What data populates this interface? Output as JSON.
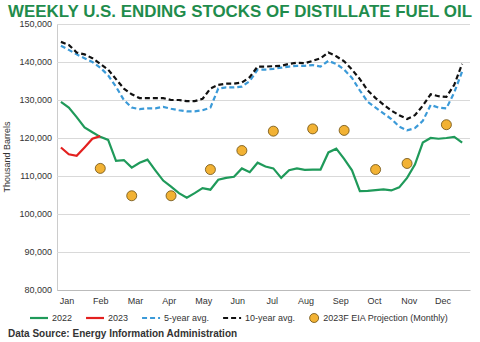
{
  "chart_data": {
    "type": "line",
    "title": "WEEKLY U.S. ENDING STOCKS OF DISTILLATE FUEL OIL",
    "y_label": "Thousand Barrels",
    "source": "Data Source: Energy Information Administration",
    "x": [
      1,
      2,
      3,
      4,
      5,
      6,
      7,
      8,
      9,
      10,
      11,
      12,
      13,
      14,
      15,
      16,
      17,
      18,
      19,
      20,
      21,
      22,
      23,
      24,
      25,
      26,
      27,
      28,
      29,
      30,
      31,
      32,
      33,
      34,
      35,
      36,
      37,
      38,
      39,
      40,
      41,
      42,
      43,
      44,
      45,
      46,
      47,
      48,
      49,
      50,
      51,
      52
    ],
    "xlim": [
      0.5,
      53
    ],
    "xticks": [
      {
        "value": 1.7,
        "label": "Jan"
      },
      {
        "value": 6.0,
        "label": "Feb"
      },
      {
        "value": 10.4,
        "label": "Mar"
      },
      {
        "value": 14.7,
        "label": "Apr"
      },
      {
        "value": 19.1,
        "label": "May"
      },
      {
        "value": 23.4,
        "label": "Jun"
      },
      {
        "value": 27.8,
        "label": "Jul"
      },
      {
        "value": 32.1,
        "label": "Aug"
      },
      {
        "value": 36.5,
        "label": "Sep"
      },
      {
        "value": 40.8,
        "label": "Oct"
      },
      {
        "value": 45.2,
        "label": "Nov"
      },
      {
        "value": 49.5,
        "label": "Dec"
      }
    ],
    "ylim": [
      80000,
      150000
    ],
    "yticks": [
      {
        "value": 80000,
        "label": "80,000"
      },
      {
        "value": 90000,
        "label": "90,000"
      },
      {
        "value": 100000,
        "label": "100,000"
      },
      {
        "value": 110000,
        "label": "110,000"
      },
      {
        "value": 120000,
        "label": "120,000"
      },
      {
        "value": 130000,
        "label": "130,000"
      },
      {
        "value": 140000,
        "label": "140,000"
      },
      {
        "value": 150000,
        "label": "150,000"
      }
    ],
    "grid": true,
    "legend": "bottom",
    "series": [
      {
        "name": "2022",
        "color": "#1f9a5a",
        "line_style": "solid",
        "values": [
          129500,
          128000,
          125500,
          122800,
          121500,
          120300,
          119500,
          114000,
          114200,
          112200,
          113500,
          114300,
          111500,
          108800,
          107200,
          105500,
          104300,
          105500,
          106800,
          106400,
          109000,
          109500,
          109800,
          112000,
          111000,
          113500,
          112500,
          112000,
          109500,
          111500,
          112000,
          111600,
          111700,
          111700,
          116200,
          117200,
          114500,
          111500,
          106000,
          106100,
          106300,
          106500,
          106200,
          107000,
          109500,
          113000,
          118800,
          120000,
          119800,
          120000,
          120300,
          118800
        ]
      },
      {
        "name": "2023",
        "color": "#e3201f",
        "line_style": "solid",
        "values": [
          117500,
          115700,
          115300,
          117500,
          119800,
          120500,
          null,
          null,
          null,
          null,
          null,
          null,
          null,
          null,
          null,
          null,
          null,
          null,
          null,
          null,
          null,
          null,
          null,
          null,
          null,
          null,
          null,
          null,
          null,
          null,
          null,
          null,
          null,
          null,
          null,
          null,
          null,
          null,
          null,
          null,
          null,
          null,
          null,
          null,
          null,
          null,
          null,
          null,
          null,
          null,
          null,
          null
        ]
      },
      {
        "name": "5-year avg.",
        "color": "#3b9ad8",
        "line_style": "dashed",
        "values": [
          144300,
          143200,
          142000,
          141000,
          140000,
          138500,
          136500,
          133500,
          130000,
          128000,
          127600,
          127800,
          127800,
          128200,
          127700,
          127300,
          127000,
          127000,
          127300,
          128000,
          133000,
          133300,
          133300,
          133500,
          135000,
          138000,
          138000,
          138200,
          138500,
          138800,
          139000,
          139000,
          139200,
          138800,
          140300,
          139500,
          138000,
          135800,
          132500,
          129500,
          128000,
          126500,
          125000,
          123000,
          122000,
          122600,
          124500,
          128700,
          128000,
          127800,
          132000,
          137500
        ]
      },
      {
        "name": "10-year avg.",
        "color": "#111111",
        "line_style": "dashed",
        "values": [
          145300,
          144500,
          142500,
          142000,
          141000,
          139500,
          138000,
          135500,
          133000,
          131500,
          130500,
          130500,
          130500,
          130500,
          130000,
          130000,
          129700,
          129700,
          130300,
          133000,
          134000,
          134300,
          134300,
          134600,
          136000,
          138800,
          138800,
          138900,
          139000,
          139500,
          139800,
          139700,
          140300,
          141000,
          142500,
          141500,
          140200,
          138000,
          135500,
          132500,
          130500,
          128800,
          127200,
          126000,
          125000,
          126000,
          128500,
          131500,
          131000,
          130800,
          134000,
          139500
        ]
      },
      {
        "name": "2023F EIA Projection (Monthly)",
        "color": "#f2b234",
        "type": "scatter",
        "marker": "circle",
        "values": [
          null,
          null,
          null,
          null,
          null,
          112000,
          null,
          null,
          null,
          104800,
          null,
          null,
          null,
          null,
          104800,
          null,
          null,
          null,
          null,
          111700,
          null,
          null,
          null,
          116700,
          null,
          null,
          null,
          121800,
          null,
          null,
          null,
          null,
          122400,
          null,
          null,
          null,
          122000,
          null,
          null,
          null,
          111700,
          null,
          null,
          null,
          113300,
          null,
          null,
          null,
          null,
          123500,
          null,
          null
        ]
      }
    ]
  }
}
